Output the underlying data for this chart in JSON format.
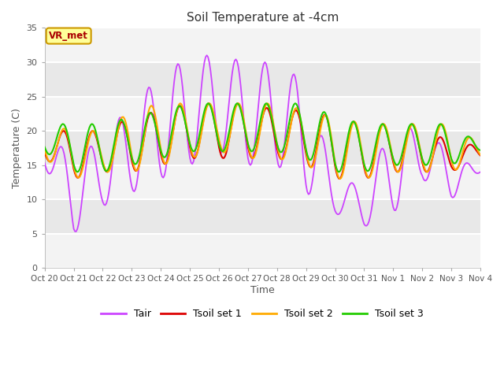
{
  "title": "Soil Temperature at -4cm",
  "xlabel": "Time",
  "ylabel": "Temperature (C)",
  "ylim": [
    0,
    35
  ],
  "yticks": [
    0,
    5,
    10,
    15,
    20,
    25,
    30,
    35
  ],
  "line_colors": {
    "Tair": "#cc44ff",
    "Tsoil1": "#dd0000",
    "Tsoil2": "#ffaa00",
    "Tsoil3": "#22cc00"
  },
  "legend_labels": [
    "Tair",
    "Tsoil set 1",
    "Tsoil set 2",
    "Tsoil set 3"
  ],
  "annotation_text": "VR_met",
  "annotation_color": "#aa0000",
  "annotation_bg": "#ffff99",
  "xtick_labels": [
    "Oct 20",
    "Oct 21",
    "Oct 22",
    "Oct 23",
    "Oct 24",
    "Oct 25",
    "Oct 26",
    "Oct 27",
    "Oct 28",
    "Oct 29",
    "Oct 30",
    "Oct 31",
    "Nov 1",
    "Nov 2",
    "Nov 3",
    "Nov 4"
  ]
}
